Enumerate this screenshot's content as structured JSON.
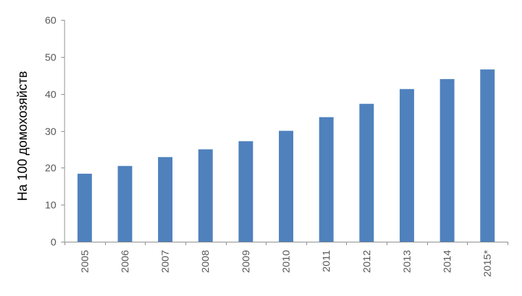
{
  "chart_data": {
    "type": "bar",
    "categories": [
      "2005",
      "2006",
      "2007",
      "2008",
      "2009",
      "2010",
      "2011",
      "2012",
      "2013",
      "2014",
      "2015*"
    ],
    "values": [
      18.4,
      20.5,
      22.9,
      25.0,
      27.2,
      30.0,
      33.7,
      37.3,
      41.3,
      44.0,
      46.6
    ],
    "title": "",
    "xlabel": "",
    "ylabel": "На 100 домохозяйств",
    "ylim": [
      0,
      60
    ],
    "yticks": [
      0,
      10,
      20,
      30,
      40,
      50,
      60
    ],
    "grid": false,
    "legend": "none",
    "colors": {
      "bar": "#4f81bd",
      "axis": "#8c8c8c",
      "tick_text": "#595959"
    }
  }
}
